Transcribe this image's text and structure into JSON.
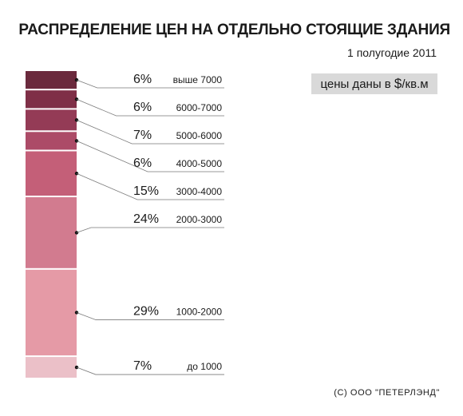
{
  "header": {
    "title": "РАСПРЕДЕЛЕНИЕ ЦЕН НА ОТДЕЛЬНО СТОЯЩИЕ ЗДАНИЯ",
    "subtitle": "1 полугодие 2011"
  },
  "unit_badge": {
    "text_before": "цены даны в ",
    "currency": "$",
    "text_after": "/кв.м"
  },
  "footer": "(С) ООО \"ПЕТЕРЛЭНД\"",
  "chart_data": {
    "type": "bar",
    "stacked": true,
    "title": "РАСПРЕДЕЛЕНИЕ ЦЕН НА ОТДЕЛЬНО СТОЯЩИЕ ЗДАНИЯ",
    "subtitle": "1 полугодие 2011",
    "unit_note": "цены даны в $/кв.м",
    "categories": [
      "выше 7000",
      "6000-7000",
      "5000-6000",
      "4000-5000",
      "3000-4000",
      "2000-3000",
      "1000-2000",
      "до 1000"
    ],
    "values": [
      6,
      6,
      7,
      6,
      15,
      24,
      29,
      7
    ],
    "labels": [
      "6%",
      "6%",
      "7%",
      "6%",
      "15%",
      "24%",
      "29%",
      "7%"
    ],
    "colors": [
      "#6b2a3d",
      "#7f2f47",
      "#943b56",
      "#ac4b67",
      "#c45f78",
      "#d27b8f",
      "#e59aa6",
      "#ebc0c8"
    ]
  }
}
